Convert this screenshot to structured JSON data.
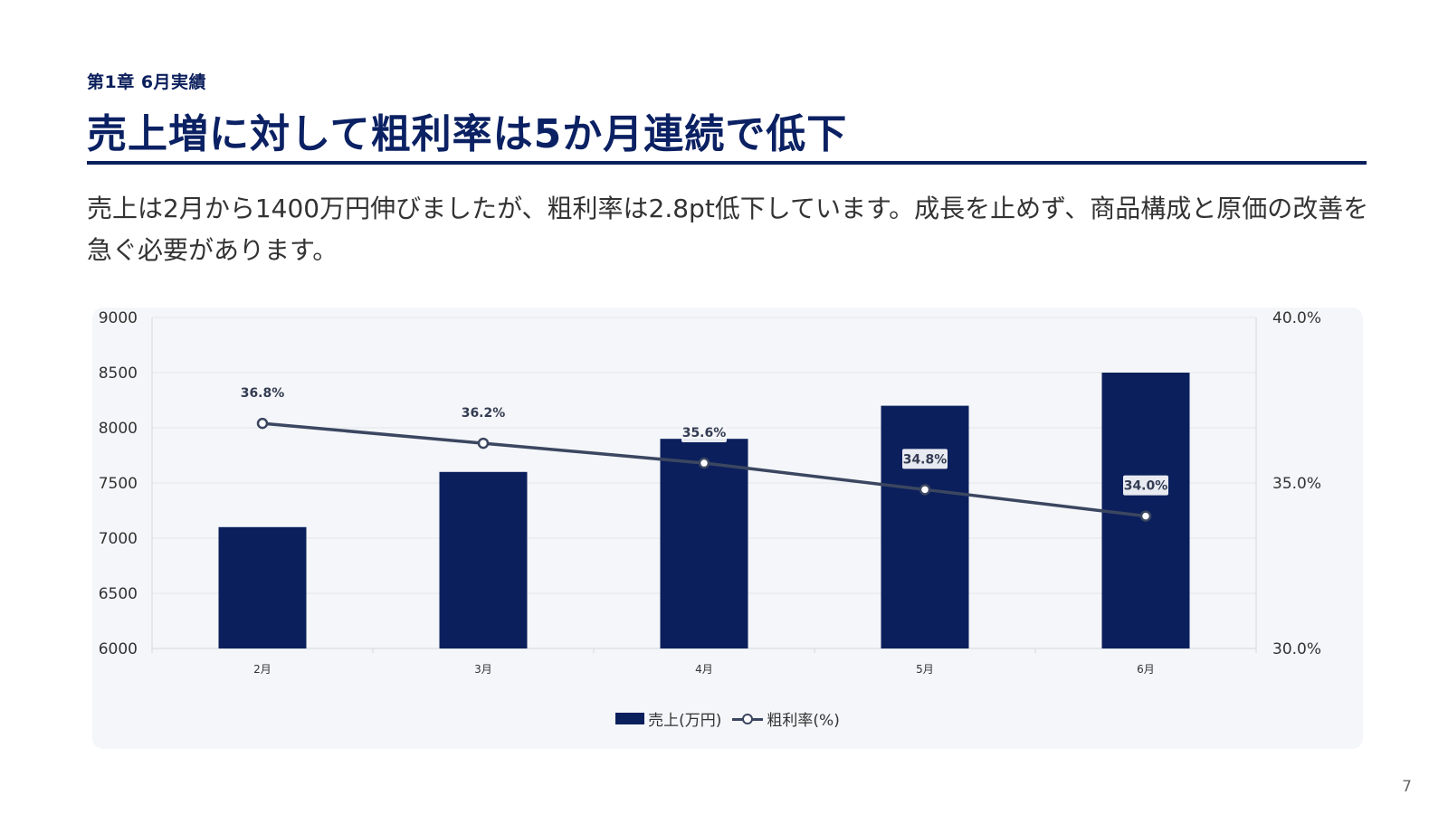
{
  "slide": {
    "kicker": "第1章 6月実績",
    "title": "売上増に対して粗利率は5か月連続で低下",
    "body": "売上は2月から1400万円伸びましたが、粗利率は2.8pt低下しています。成長を止めず、商品構成と原価の改善を急ぐ必要があります。",
    "page_number": "7"
  },
  "colors": {
    "accent": "#0b1f5c",
    "bar": "#0b1f5c",
    "line": "#3b4660",
    "panel": "#f4f6f9"
  },
  "chart_data": {
    "type": "bar",
    "categories": [
      "2月",
      "3月",
      "4月",
      "5月",
      "6月"
    ],
    "series": [
      {
        "name": "売上(万円)",
        "type": "bar",
        "axis": "left",
        "values": [
          7100,
          7600,
          7900,
          8200,
          8500
        ]
      },
      {
        "name": "粗利率(%)",
        "type": "line",
        "axis": "right",
        "values": [
          36.8,
          36.2,
          35.6,
          34.8,
          34.0
        ],
        "labels": [
          "36.8%",
          "36.2%",
          "35.6%",
          "34.8%",
          "34.0%"
        ]
      }
    ],
    "y_left": {
      "min": 6000,
      "max": 9000,
      "ticks": [
        "9000",
        "8500",
        "8000",
        "7500",
        "7000",
        "6500",
        "6000"
      ]
    },
    "y_right": {
      "min": 30.0,
      "max": 40.0,
      "ticks": [
        "40.0%",
        "35.0%",
        "30.0%"
      ]
    },
    "grid": true,
    "legend": "bottom-center"
  }
}
